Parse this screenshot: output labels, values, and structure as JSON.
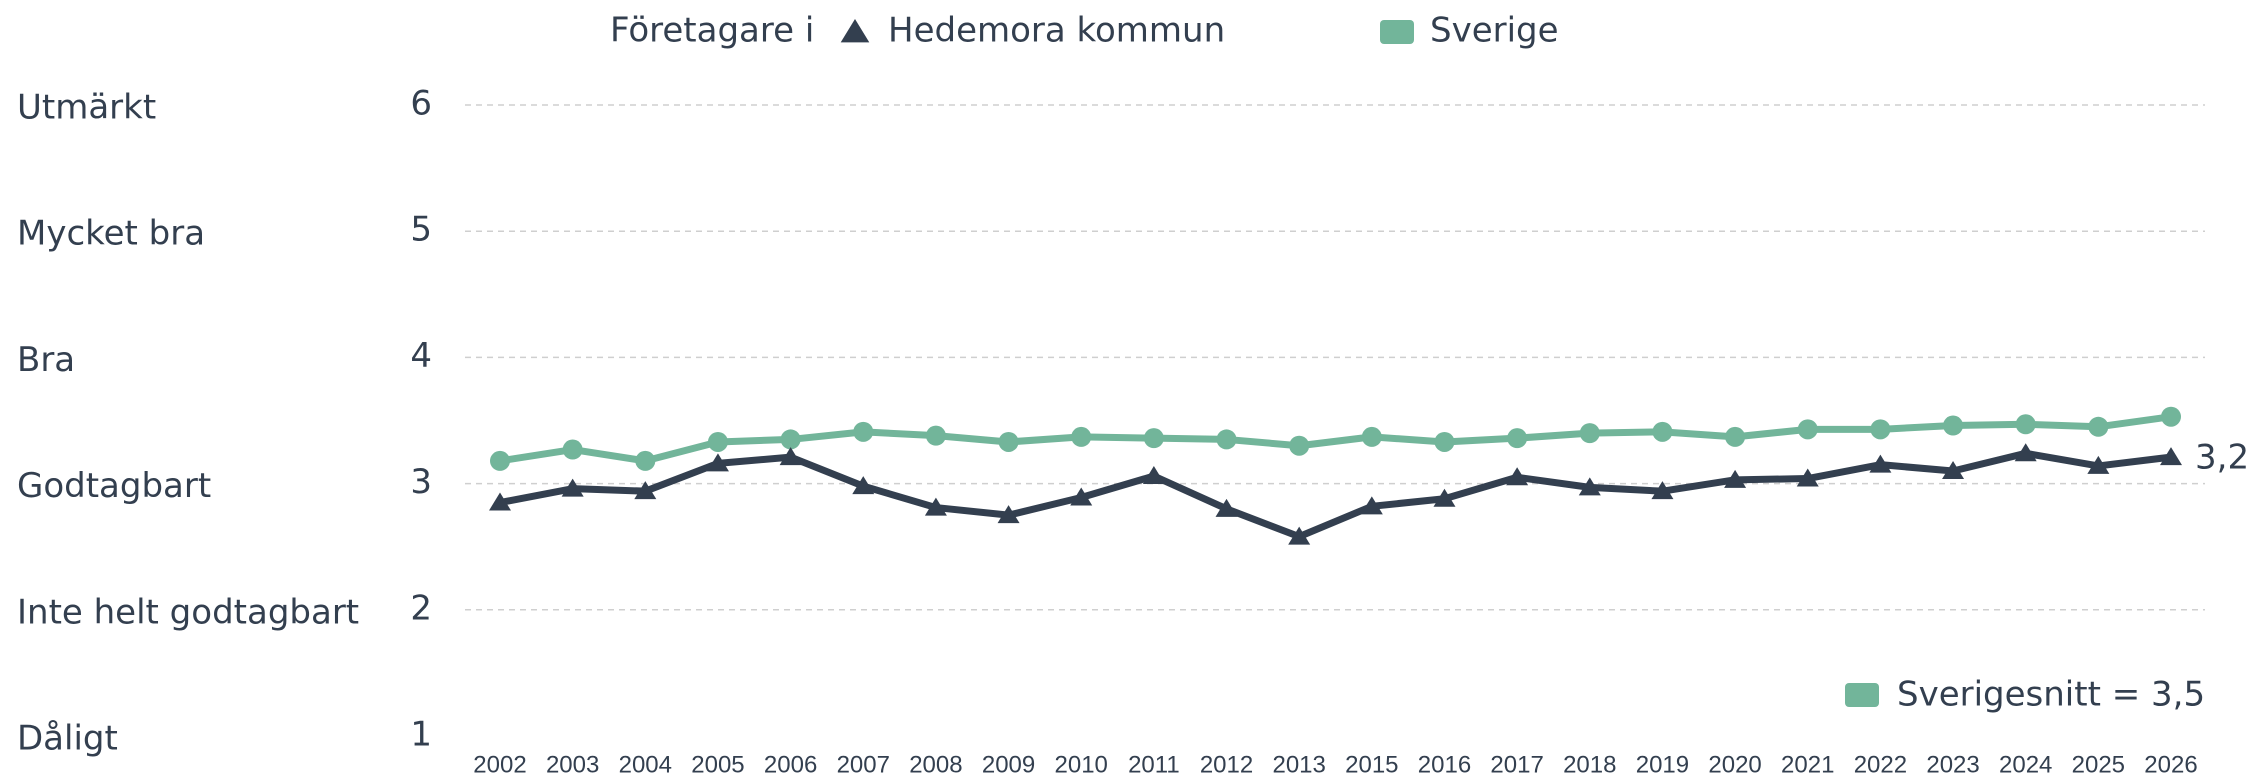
{
  "chart_data": {
    "type": "line",
    "legend_title": "Företagare i",
    "categories": [
      "2002",
      "2003",
      "2004",
      "2005",
      "2006",
      "2007",
      "2008",
      "2009",
      "2010",
      "2011",
      "2012",
      "2013",
      "2015",
      "2016",
      "2017",
      "2018",
      "2019",
      "2020",
      "2021",
      "2022",
      "2023",
      "2024",
      "2025",
      "2026"
    ],
    "series": [
      {
        "name": "Hedemora kommun",
        "color": "#333f4f",
        "marker": "triangle",
        "values": [
          2.85,
          2.96,
          2.94,
          3.16,
          3.21,
          2.98,
          2.81,
          2.75,
          2.89,
          3.06,
          2.8,
          2.58,
          2.82,
          2.88,
          3.05,
          2.97,
          2.94,
          3.03,
          3.04,
          3.15,
          3.1,
          3.24,
          3.14,
          3.21
        ],
        "value_labels": [
          null,
          null,
          null,
          null,
          null,
          null,
          null,
          null,
          null,
          null,
          null,
          null,
          null,
          null,
          null,
          null,
          null,
          null,
          null,
          null,
          null,
          null,
          null,
          "3,2"
        ]
      },
      {
        "name": "Sverige",
        "color": "#72b59a",
        "marker": "circle",
        "values": [
          3.18,
          3.27,
          3.18,
          3.33,
          3.35,
          3.41,
          3.38,
          3.33,
          3.37,
          3.36,
          3.35,
          3.3,
          3.37,
          3.33,
          3.36,
          3.4,
          3.41,
          3.37,
          3.43,
          3.43,
          3.46,
          3.47,
          3.45,
          3.53
        ]
      }
    ],
    "ylim": [
      1,
      6
    ],
    "yticks": [
      1,
      2,
      3,
      4,
      5,
      6
    ],
    "scale_labels": [
      "Dåligt",
      "Inte helt godtagbart",
      "Godtagbart",
      "Bra",
      "Mycket bra",
      "Utmärkt"
    ],
    "grid": true,
    "annotation": {
      "text": "Sverigesnitt = 3,5",
      "color": "#72b59a"
    }
  }
}
